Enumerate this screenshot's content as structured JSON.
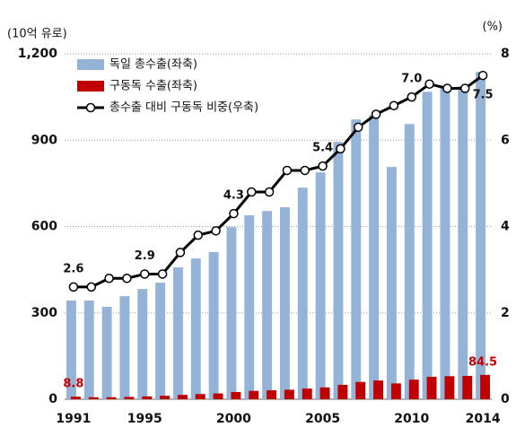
{
  "chart_data": {
    "type": "bar",
    "y_label": "(10억 유로)",
    "y2_label": "(%)",
    "categories": [
      "1991",
      null,
      null,
      null,
      "1995",
      null,
      null,
      null,
      null,
      "2000",
      null,
      null,
      null,
      null,
      "2005",
      null,
      null,
      null,
      null,
      "2010",
      null,
      null,
      null,
      "2014"
    ],
    "ylim": [
      0,
      1200
    ],
    "yticks": [
      0,
      300,
      600,
      900,
      {
        "value": 1200,
        "label": "1,200"
      }
    ],
    "y2lim": [
      0,
      8
    ],
    "y2ticks": [
      0,
      2,
      4,
      6,
      8
    ],
    "grid": true,
    "legend": "top-left",
    "series": [
      {
        "name": "독일 총수출(좌축)",
        "type": "bar",
        "color": "#95b3d7",
        "values": [
          343,
          343,
          321,
          358,
          383,
          405,
          458,
          489,
          511,
          598,
          639,
          654,
          667,
          735,
          788,
          894,
          972,
          987,
          807,
          956,
          1068,
          1084,
          1088,
          1137
        ]
      },
      {
        "name": "구동독 수출(좌축)",
        "type": "bar",
        "color": "#c00000",
        "values": [
          8.8,
          7,
          7,
          8,
          10,
          12,
          15,
          18,
          20,
          25,
          29,
          31,
          33,
          37,
          41,
          50,
          60,
          65,
          55,
          68,
          78,
          80,
          81,
          84.5
        ]
      },
      {
        "name": "총수출 대비 구동독 비중(우축)",
        "type": "line",
        "color": "#000000",
        "axis": "y2",
        "values": [
          2.6,
          2.6,
          2.8,
          2.8,
          2.9,
          2.9,
          3.4,
          3.8,
          3.9,
          4.3,
          4.8,
          4.8,
          5.3,
          5.3,
          5.4,
          5.8,
          6.3,
          6.6,
          6.8,
          7.0,
          7.3,
          7.2,
          7.2,
          7.5
        ],
        "value_labels": [
          "2.6",
          null,
          null,
          null,
          "2.9",
          null,
          null,
          null,
          null,
          "4.3",
          null,
          null,
          null,
          null,
          "5.4",
          null,
          null,
          null,
          null,
          "7.0",
          null,
          null,
          null,
          "7.5"
        ]
      }
    ]
  }
}
